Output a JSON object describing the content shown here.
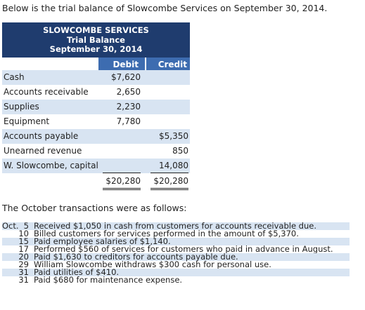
{
  "intro": "Below is the trial balance of Slowcombe Services on September 30, 2014.",
  "trial_balance": {
    "company": "SLOWCOMBE SERVICES",
    "title": "Trial Balance",
    "date": "September 30, 2014",
    "debit_header": "Debit",
    "credit_header": "Credit",
    "rows": [
      {
        "account": "Cash",
        "debit": "$7,620",
        "credit": ""
      },
      {
        "account": "Accounts receivable",
        "debit": "2,650",
        "credit": ""
      },
      {
        "account": "Supplies",
        "debit": "2,230",
        "credit": ""
      },
      {
        "account": "Equipment",
        "debit": "7,780",
        "credit": ""
      },
      {
        "account": "Accounts payable",
        "debit": "",
        "credit": "$5,350"
      },
      {
        "account": "Unearned revenue",
        "debit": "",
        "credit": "850"
      },
      {
        "account": "W. Slowcombe, capital",
        "debit": "",
        "credit": "14,080"
      }
    ],
    "total_debit": "$20,280",
    "total_credit": "$20,280"
  },
  "transactions_title": "The October transactions were as follows:",
  "transactions": [
    {
      "month": "Oct.",
      "day": "5",
      "text": "Received $1,050 in cash from customers for accounts receivable due."
    },
    {
      "month": "",
      "day": "10",
      "text": "Billed customers for services performed in the amount of $5,370."
    },
    {
      "month": "",
      "day": "15",
      "text": "Paid employee salaries of $1,140."
    },
    {
      "month": "",
      "day": "17",
      "text": "Performed $560 of services for customers who paid in advance in August."
    },
    {
      "month": "",
      "day": "20",
      "text": "Paid $1,630 to creditors for accounts payable due."
    },
    {
      "month": "",
      "day": "29",
      "text": "William Slowcombe withdraws $300 cash for personal use."
    },
    {
      "month": "",
      "day": "31",
      "text": "Paid utilities of $410."
    },
    {
      "month": "",
      "day": "31",
      "text": "Paid $680 for maintenance expense."
    }
  ]
}
